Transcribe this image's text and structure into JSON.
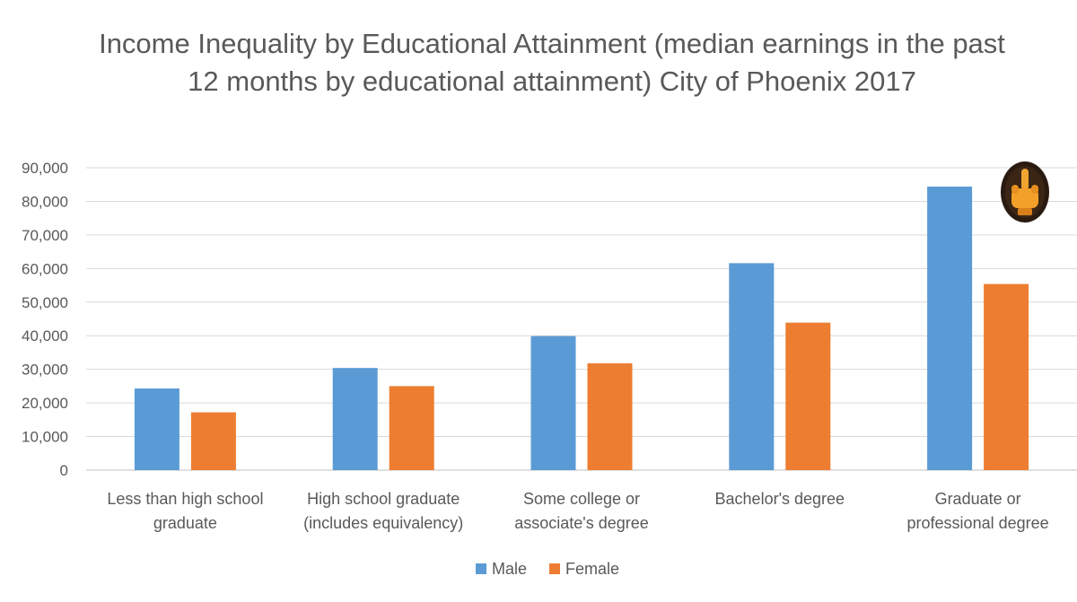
{
  "chart_data": {
    "type": "bar",
    "title": "Income Inequality by Educational Attainment (median earnings in the past 12 months by educational attainment) City of Phoenix 2017",
    "categories": [
      [
        "Less than high school",
        "graduate"
      ],
      [
        "High school graduate",
        "(includes equivalency)"
      ],
      [
        "Some college or",
        "associate's degree"
      ],
      [
        "Bachelor's degree"
      ],
      [
        "Graduate or",
        "professional degree"
      ]
    ],
    "series": [
      {
        "name": "Male",
        "color": "#5b9bd5",
        "values": [
          24300,
          30400,
          39900,
          61600,
          84400
        ]
      },
      {
        "name": "Female",
        "color": "#ed7d31",
        "values": [
          17200,
          25000,
          31800,
          43900,
          55400
        ]
      }
    ],
    "ylim": [
      0,
      90000
    ],
    "ytick_step": 10000,
    "ytick_labels": [
      "0",
      "10,000",
      "20,000",
      "30,000",
      "40,000",
      "50,000",
      "60,000",
      "70,000",
      "80,000",
      "90,000"
    ],
    "grid": true,
    "legend_position": "bottom",
    "annotation_icon": "middle-finger-emoji-icon"
  }
}
